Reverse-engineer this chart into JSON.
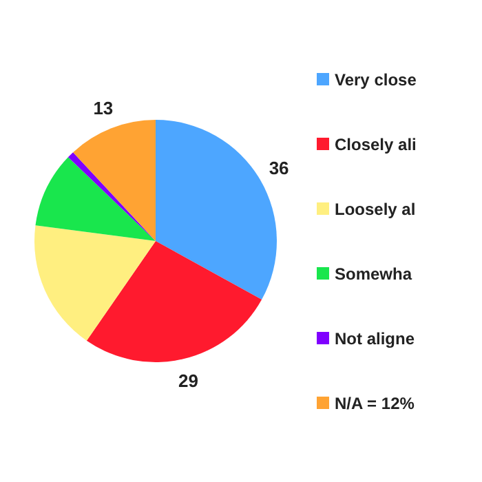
{
  "chart_data": {
    "type": "pie",
    "categories": [
      "Very close",
      "Closely ali",
      "Loosely al",
      "Somewha",
      "Not aligne",
      "N/A = 12%"
    ],
    "values": [
      36,
      29,
      19,
      11,
      1,
      13
    ],
    "colors": [
      "#4da6ff",
      "#ff1a2e",
      "#ffef80",
      "#19e64d",
      "#8000ff",
      "#ffa333"
    ],
    "value_labels": [
      "36",
      "29",
      null,
      null,
      null,
      "13"
    ],
    "legend": "right"
  }
}
